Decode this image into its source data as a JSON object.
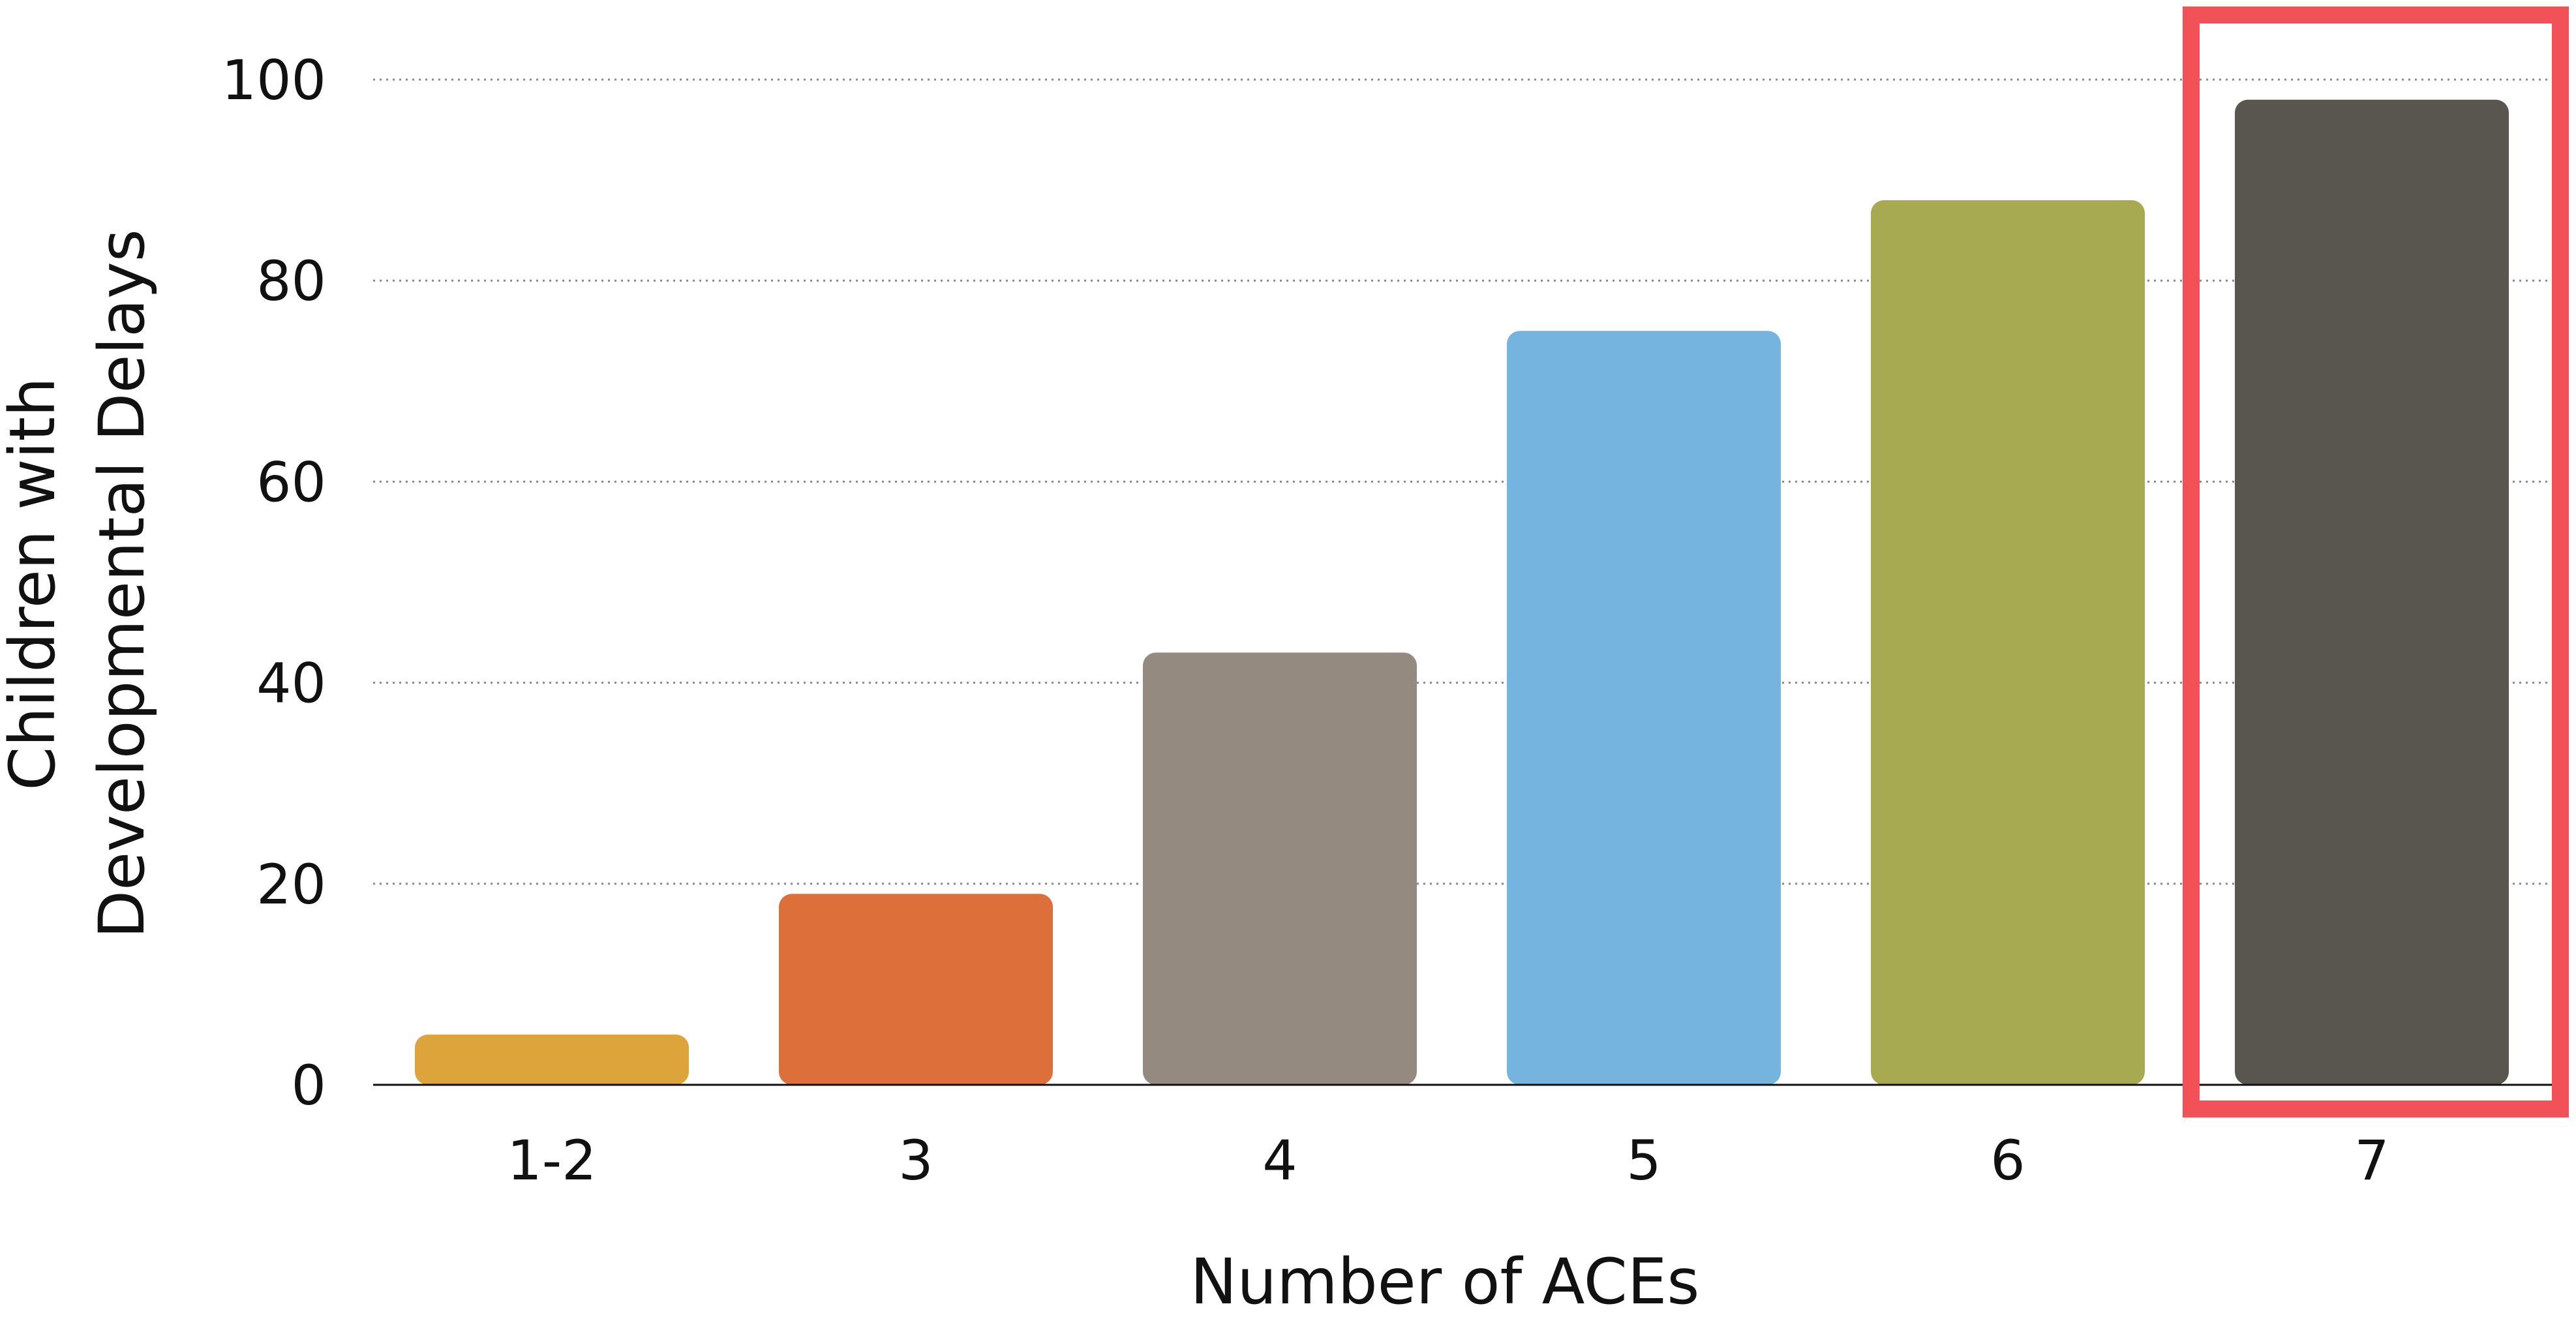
{
  "chart_data": {
    "type": "bar",
    "categories": [
      "1-2",
      "3",
      "4",
      "5",
      "6",
      "7"
    ],
    "values": [
      5,
      19,
      43,
      75,
      88,
      98
    ],
    "colors": [
      "#DCA43A",
      "#DD6F3A",
      "#948A80",
      "#76B4E0",
      "#A7AA50",
      "#58564E"
    ],
    "xlabel": "Number of ACEs",
    "ylabel_lines": [
      "Children with",
      "Developmental Delays"
    ],
    "ylim": [
      0,
      100
    ],
    "yticks": [
      0,
      20,
      40,
      60,
      80,
      100
    ],
    "grid": true,
    "grid_style": "dotted",
    "highlight": {
      "category": "7",
      "color": "#F25257"
    }
  }
}
